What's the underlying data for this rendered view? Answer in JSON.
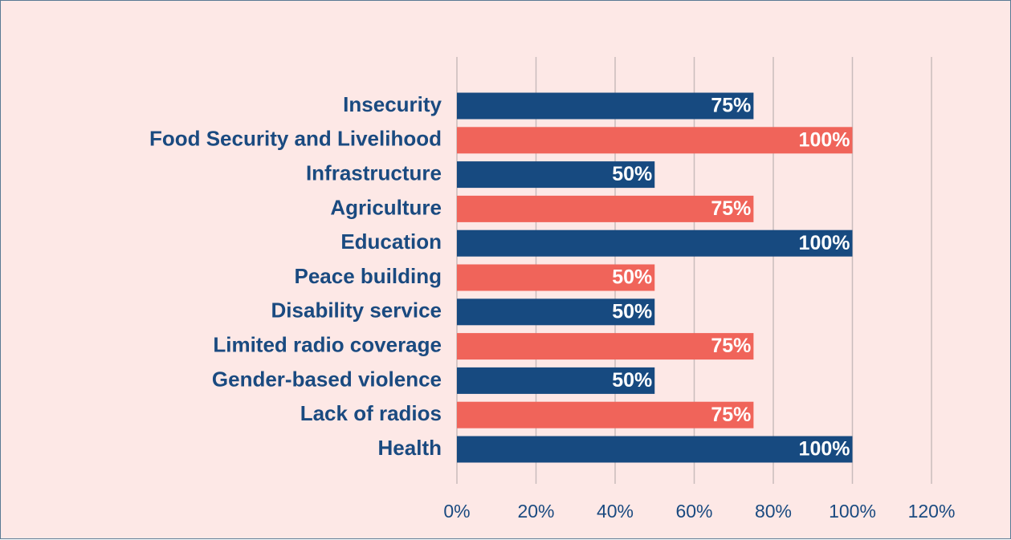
{
  "chart_data": {
    "type": "bar",
    "orientation": "horizontal",
    "title": "",
    "xlabel": "",
    "ylabel": "",
    "categories": [
      "Insecurity",
      "Food Security and Livelihood",
      "Infrastructure",
      "Agriculture",
      "Education",
      "Peace building",
      "Disability service",
      "Limited radio coverage",
      "Gender-based violence",
      "Lack of radios",
      "Health"
    ],
    "values": [
      75,
      100,
      50,
      75,
      100,
      50,
      50,
      75,
      50,
      75,
      100
    ],
    "value_labels": [
      "75%",
      "100%",
      "50%",
      "75%",
      "100%",
      "50%",
      "50%",
      "75%",
      "50%",
      "75%",
      "100%"
    ],
    "xlim": [
      0,
      120
    ],
    "x_ticks": [
      0,
      20,
      40,
      60,
      80,
      100,
      120
    ],
    "x_tick_labels": [
      "0%",
      "20%",
      "40%",
      "60%",
      "80%",
      "100%",
      "120%"
    ],
    "grid": "vertical",
    "legend": "none",
    "colors": {
      "primary": "#174a80",
      "secondary": "#f0645a",
      "background": "#fde8e6",
      "text": "#1a4a80",
      "value_text": "#ffffff",
      "grid": "#c9bcbc"
    },
    "bar_color_pattern": [
      "primary",
      "secondary"
    ]
  }
}
